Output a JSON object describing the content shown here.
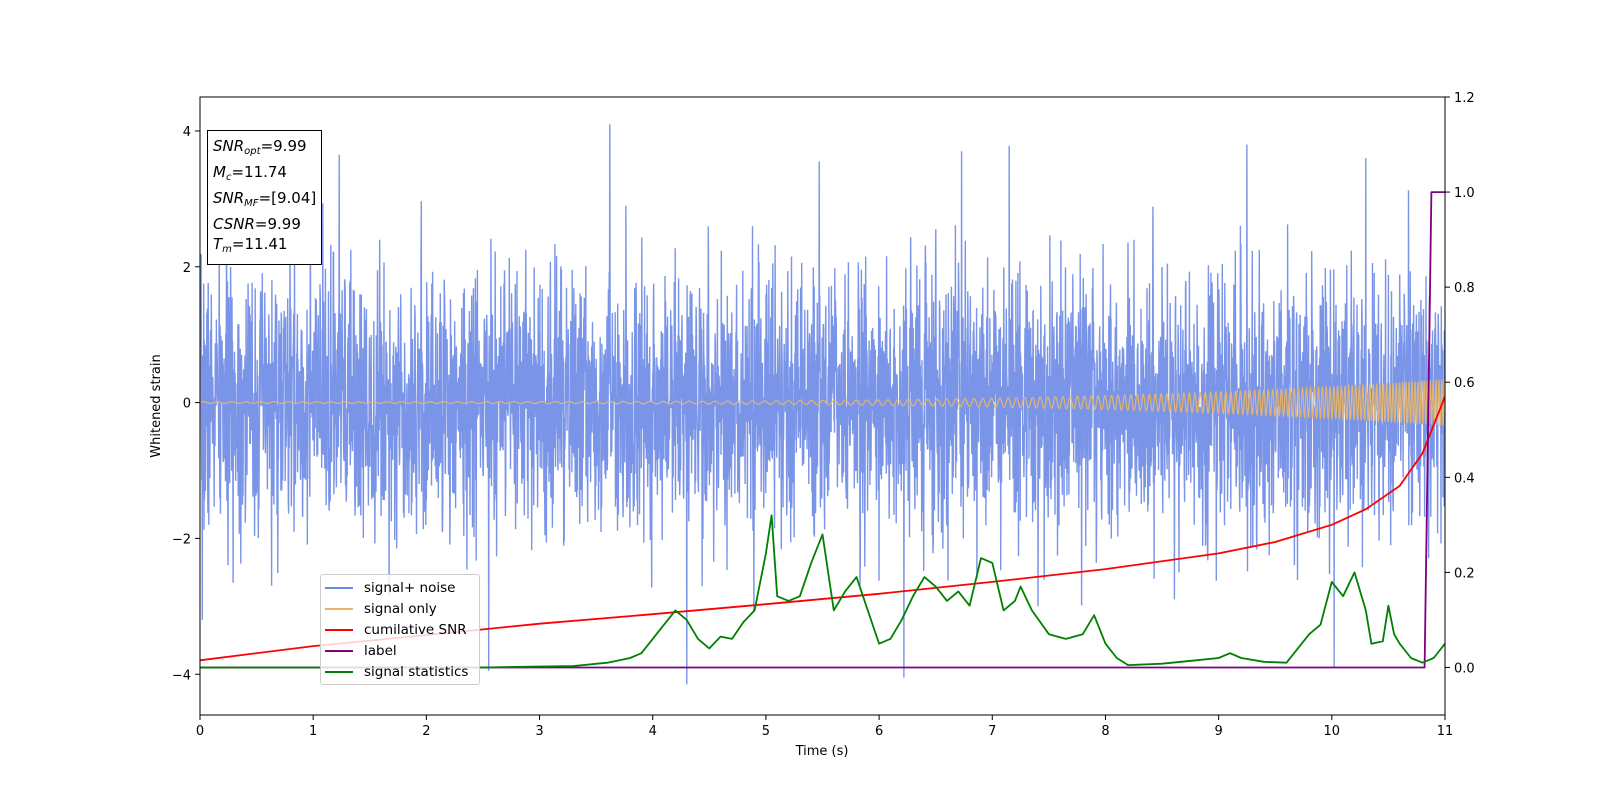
{
  "chart_data": {
    "type": "line",
    "title": "",
    "xlabel": "Time (s)",
    "ylabel": "Whitened strain",
    "xlim": [
      0,
      11
    ],
    "ylim": [
      -4.6,
      4.5
    ],
    "y2lim": [
      -0.1,
      1.2
    ],
    "x_ticks": [
      0,
      1,
      2,
      3,
      4,
      5,
      6,
      7,
      8,
      9,
      10,
      11
    ],
    "x_tick_labels": [
      "0",
      "1",
      "2",
      "3",
      "4",
      "5",
      "6",
      "7",
      "8",
      "9",
      "10",
      "11"
    ],
    "y_ticks": [
      -4,
      -2,
      0,
      2,
      4
    ],
    "y_tick_labels": [
      "−4",
      "−2",
      "0",
      "2",
      "4"
    ],
    "y2_ticks": [
      0.0,
      0.2,
      0.4,
      0.6,
      0.8,
      1.0,
      1.2
    ],
    "y2_tick_labels": [
      "0.0",
      "0.2",
      "0.4",
      "0.6",
      "0.8",
      "1.0",
      "1.2"
    ],
    "grid": false,
    "legend_position": "lower-left",
    "stats_box": [
      {
        "sym": "SNR",
        "sub": "opt",
        "value": "=9.99"
      },
      {
        "sym": "M",
        "sub": "c",
        "value": "=11.74"
      },
      {
        "sym": "SNR",
        "sub": "MF",
        "value": "=[9.04]"
      },
      {
        "sym": "CSNR",
        "sub": "",
        "value": "=9.99"
      },
      {
        "sym": "T",
        "sub": "m",
        "value": "=11.41"
      }
    ],
    "series": [
      {
        "name": "signal+ noise",
        "color": "#6b8ae6",
        "axis": "left",
        "kind": "noise",
        "std": 0.95,
        "x_range": [
          0,
          11
        ],
        "samples": 4400,
        "seed": 7,
        "spikes": [
          [
            1.23,
            3.65
          ],
          [
            3.62,
            4.1
          ],
          [
            5.47,
            3.55
          ],
          [
            6.73,
            3.7
          ],
          [
            7.15,
            3.78
          ],
          [
            9.25,
            3.8
          ],
          [
            10.3,
            3.6
          ],
          [
            4.3,
            -4.15
          ],
          [
            6.22,
            -4.05
          ],
          [
            10.02,
            -3.9
          ],
          [
            2.55,
            -3.95
          ],
          [
            0.02,
            -3.2
          ]
        ]
      },
      {
        "name": "signal only",
        "color": "#e8b56a",
        "axis": "left",
        "kind": "chirp",
        "x_range": [
          0,
          11
        ],
        "amplitude": [
          0.012,
          0.34
        ],
        "frequency_hz": [
          8,
          40
        ]
      },
      {
        "name": "cumilative SNR",
        "color": "#ff0000",
        "axis": "right",
        "x": [
          0,
          1,
          2,
          3,
          4,
          5,
          6,
          7,
          8,
          9,
          9.5,
          10,
          10.3,
          10.6,
          10.8,
          11
        ],
        "values": [
          0.015,
          0.045,
          0.068,
          0.092,
          0.112,
          0.133,
          0.155,
          0.18,
          0.207,
          0.24,
          0.264,
          0.3,
          0.333,
          0.382,
          0.45,
          0.57
        ]
      },
      {
        "name": "label",
        "color": "#800080",
        "axis": "right",
        "x": [
          0,
          10.82,
          10.88,
          10.9,
          11
        ],
        "values": [
          0.0,
          0.0,
          1.0,
          1.0,
          1.0
        ]
      },
      {
        "name": "signal statistics",
        "color": "#008000",
        "axis": "right",
        "x": [
          0,
          0.5,
          1,
          1.5,
          2,
          2.5,
          3,
          3.3,
          3.6,
          3.8,
          3.9,
          4.0,
          4.1,
          4.2,
          4.3,
          4.4,
          4.5,
          4.6,
          4.7,
          4.8,
          4.9,
          5.0,
          5.05,
          5.1,
          5.2,
          5.3,
          5.4,
          5.5,
          5.6,
          5.7,
          5.8,
          5.9,
          6.0,
          6.1,
          6.2,
          6.3,
          6.4,
          6.5,
          6.6,
          6.7,
          6.8,
          6.9,
          7.0,
          7.1,
          7.2,
          7.25,
          7.35,
          7.5,
          7.65,
          7.8,
          7.9,
          8.0,
          8.1,
          8.2,
          8.5,
          8.8,
          9.0,
          9.1,
          9.2,
          9.4,
          9.6,
          9.8,
          9.9,
          10.0,
          10.1,
          10.2,
          10.3,
          10.35,
          10.45,
          10.5,
          10.55,
          10.6,
          10.7,
          10.8,
          10.9,
          11.0
        ],
        "values": [
          0.0,
          0.0,
          0.0,
          0.0,
          0.0,
          0.0,
          0.002,
          0.003,
          0.01,
          0.02,
          0.03,
          0.06,
          0.09,
          0.12,
          0.1,
          0.06,
          0.04,
          0.065,
          0.06,
          0.095,
          0.12,
          0.24,
          0.32,
          0.15,
          0.14,
          0.15,
          0.22,
          0.28,
          0.12,
          0.16,
          0.19,
          0.12,
          0.05,
          0.06,
          0.1,
          0.15,
          0.19,
          0.17,
          0.14,
          0.16,
          0.13,
          0.23,
          0.22,
          0.12,
          0.14,
          0.17,
          0.12,
          0.07,
          0.06,
          0.07,
          0.11,
          0.05,
          0.02,
          0.005,
          0.008,
          0.015,
          0.02,
          0.03,
          0.02,
          0.012,
          0.01,
          0.07,
          0.09,
          0.18,
          0.15,
          0.2,
          0.12,
          0.05,
          0.055,
          0.13,
          0.07,
          0.05,
          0.02,
          0.01,
          0.02,
          0.05
        ]
      }
    ]
  }
}
